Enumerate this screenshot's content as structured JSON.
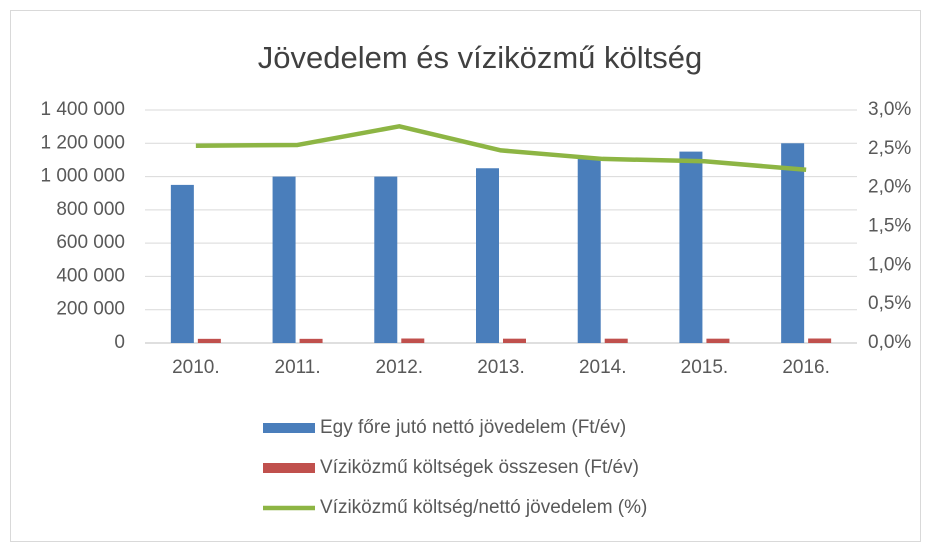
{
  "chart_data": {
    "type": "bar",
    "title": "Jövedelem és víziközmű költség",
    "categories": [
      "2010.",
      "2011.",
      "2012.",
      "2013.",
      "2014.",
      "2015.",
      "2016."
    ],
    "series": [
      {
        "name": "Egy főre jutó nettó jövedelem (Ft/év)",
        "color": "#4a7ebb",
        "values": [
          950000,
          1000000,
          1000000,
          1050000,
          1110000,
          1150000,
          1200000
        ]
      },
      {
        "name": "Víziközmű költségek összesen (Ft/év)",
        "color": "#c0504d",
        "values": [
          25000,
          25000,
          27000,
          26000,
          26000,
          26000,
          27000
        ]
      },
      {
        "name": "Víziközmű költség/nettó jövedelem (%)",
        "color": "#8db544",
        "type": "line",
        "axis": "y2",
        "values": [
          2.54,
          2.55,
          2.79,
          2.48,
          2.37,
          2.34,
          2.23
        ]
      }
    ],
    "ylim": [
      0,
      1400000
    ],
    "yticks": [
      0,
      {
        "value": 200000,
        "label": "200 000"
      },
      {
        "value": 400000,
        "label": "400 000"
      },
      {
        "value": 600000,
        "label": "600 000"
      },
      {
        "value": 800000,
        "label": "800 000"
      },
      {
        "value": 1000000,
        "label": "1 000 000"
      },
      {
        "value": 1200000,
        "label": "1 200 000"
      },
      {
        "value": 1400000,
        "label": "1 400 000"
      }
    ],
    "y2lim": [
      0,
      3.0
    ],
    "y2ticks": [
      {
        "value": 0,
        "label": "0,0%"
      },
      {
        "value": 0.5,
        "label": "0,5%"
      },
      {
        "value": 1.0,
        "label": "1,0%"
      },
      {
        "value": 1.5,
        "label": "1,5%"
      },
      {
        "value": 2.0,
        "label": "2,0%"
      },
      {
        "value": 2.5,
        "label": "2,5%"
      },
      {
        "value": 3.0,
        "label": "3,0%"
      }
    ],
    "grid": true,
    "legend": "bottom"
  }
}
